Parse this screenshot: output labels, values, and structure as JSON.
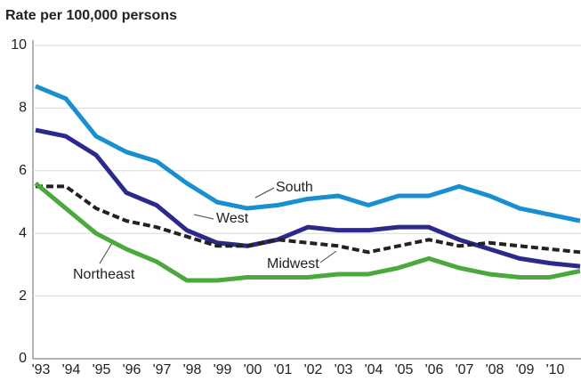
{
  "chart_data": {
    "type": "line",
    "title": "Rate per 100,000 persons",
    "categories": [
      "'93",
      "'94",
      "'95",
      "'96",
      "'97",
      "'98",
      "'99",
      "'00",
      "'01",
      "'02",
      "'03",
      "'04",
      "'05",
      "'06",
      "'07",
      "'08",
      "'09",
      "'10",
      null
    ],
    "series": [
      {
        "name": "South",
        "color": "#1a8fd0",
        "dash": false,
        "values": [
          8.7,
          8.3,
          7.1,
          6.6,
          6.3,
          5.6,
          5.0,
          4.8,
          4.9,
          5.1,
          5.2,
          4.9,
          5.2,
          5.2,
          5.5,
          5.2,
          4.8,
          4.6,
          4.4
        ]
      },
      {
        "name": "West",
        "color": "#2b2a8c",
        "dash": false,
        "values": [
          7.3,
          7.1,
          6.5,
          5.3,
          4.9,
          4.1,
          3.7,
          3.6,
          3.8,
          4.2,
          4.1,
          4.1,
          4.2,
          4.2,
          3.8,
          3.5,
          3.2,
          3.05,
          2.95
        ]
      },
      {
        "name": "Midwest",
        "color": "#222222",
        "dash": true,
        "values": [
          5.5,
          5.5,
          4.8,
          4.4,
          4.2,
          3.9,
          3.6,
          3.6,
          3.8,
          3.7,
          3.6,
          3.4,
          3.6,
          3.8,
          3.6,
          3.7,
          3.6,
          3.5,
          3.4
        ]
      },
      {
        "name": "Northeast",
        "color": "#4aa83c",
        "dash": false,
        "values": [
          5.6,
          4.8,
          4.0,
          3.5,
          3.1,
          2.5,
          2.5,
          2.6,
          2.6,
          2.6,
          2.7,
          2.7,
          2.9,
          3.2,
          2.9,
          2.7,
          2.6,
          2.6,
          2.8
        ]
      }
    ],
    "ylim": [
      0,
      10
    ],
    "yticks": [
      0,
      2,
      4,
      6,
      8,
      10
    ],
    "grid": true
  }
}
